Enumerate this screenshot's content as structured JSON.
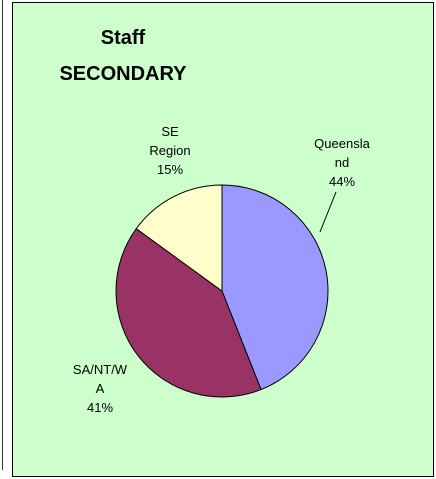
{
  "chart_data": {
    "type": "pie",
    "title": [
      "Staff",
      "SECONDARY"
    ],
    "categories": [
      "Queensland",
      "SA/NT/WA",
      "SE Region"
    ],
    "values": [
      44,
      41,
      15
    ],
    "value_labels": [
      "44%",
      "41%",
      "15%"
    ],
    "colors": [
      "#9999ff",
      "#993366",
      "#ffffcc"
    ]
  }
}
